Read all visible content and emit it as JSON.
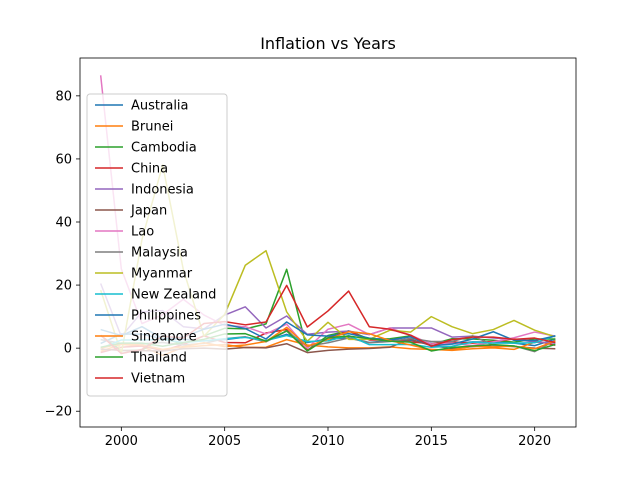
{
  "chart_data": {
    "type": "line",
    "title": "Inflation vs Years",
    "xlabel": "",
    "ylabel": "",
    "xlim": [
      1998,
      2022
    ],
    "ylim": [
      -25,
      92
    ],
    "xticks": [
      2000,
      2005,
      2010,
      2015,
      2020
    ],
    "yticks": [
      -20,
      0,
      20,
      40,
      60,
      80
    ],
    "grid": false,
    "legend_position": "upper-left",
    "x": [
      1999,
      2000,
      2001,
      2002,
      2003,
      2004,
      2005,
      2006,
      2007,
      2008,
      2009,
      2010,
      2011,
      2012,
      2013,
      2014,
      2015,
      2016,
      2017,
      2018,
      2019,
      2020,
      2021
    ],
    "series": [
      {
        "name": "Australia",
        "color": "#1f77b4",
        "values": [
          1.5,
          4.5,
          4.4,
          3.0,
          2.8,
          2.3,
          2.7,
          3.5,
          2.3,
          4.4,
          1.8,
          2.9,
          3.3,
          1.8,
          2.4,
          2.5,
          1.5,
          1.3,
          2.0,
          1.9,
          1.6,
          0.8,
          2.9
        ]
      },
      {
        "name": "Brunei",
        "color": "#ff7f0e",
        "values": [
          -1.0,
          1.2,
          0.6,
          -2.3,
          0.3,
          0.8,
          1.1,
          0.2,
          0.3,
          2.7,
          1.0,
          0.4,
          0.1,
          0.1,
          0.4,
          -0.2,
          -0.4,
          -0.7,
          -0.2,
          0.1,
          -0.4,
          1.9,
          1.7
        ]
      },
      {
        "name": "Cambodia",
        "color": "#2ca02c",
        "values": [
          4.0,
          -0.8,
          -0.6,
          3.2,
          1.2,
          3.9,
          6.3,
          6.1,
          7.7,
          25.0,
          -0.7,
          4.0,
          5.5,
          2.9,
          3.0,
          3.9,
          1.2,
          3.0,
          2.9,
          2.5,
          1.9,
          2.9,
          2.9
        ]
      },
      {
        "name": "China",
        "color": "#d62728",
        "values": [
          -1.4,
          0.3,
          0.7,
          -0.8,
          1.2,
          3.9,
          1.8,
          1.7,
          4.8,
          5.9,
          -0.7,
          3.3,
          5.4,
          2.6,
          2.6,
          2.0,
          1.4,
          2.0,
          1.6,
          2.1,
          2.9,
          2.4,
          0.9
        ]
      },
      {
        "name": "Indonesia",
        "color": "#9467bd",
        "values": [
          20.5,
          3.7,
          11.5,
          11.9,
          6.8,
          6.1,
          10.5,
          13.1,
          6.4,
          10.2,
          4.4,
          5.1,
          5.4,
          4.3,
          6.4,
          6.4,
          6.4,
          3.5,
          3.8,
          3.2,
          2.8,
          2.0,
          1.6
        ]
      },
      {
        "name": "Japan",
        "color": "#8c564b",
        "values": [
          -0.3,
          -0.7,
          -0.8,
          -0.9,
          -0.2,
          0.0,
          -0.3,
          0.2,
          0.1,
          1.4,
          -1.4,
          -0.7,
          -0.3,
          -0.1,
          0.3,
          2.8,
          0.8,
          -0.1,
          0.5,
          1.0,
          0.5,
          0.0,
          -0.2
        ]
      },
      {
        "name": "Lao",
        "color": "#e377c2",
        "values": [
          86.5,
          25.1,
          7.8,
          10.6,
          15.5,
          10.5,
          7.2,
          6.8,
          4.5,
          7.6,
          0.0,
          6.0,
          7.6,
          4.3,
          6.4,
          4.1,
          1.3,
          1.6,
          0.8,
          2.0,
          3.3,
          5.1,
          3.8
        ]
      },
      {
        "name": "Malaysia",
        "color": "#7f7f7f",
        "values": [
          2.7,
          1.5,
          1.4,
          1.8,
          1.0,
          1.5,
          3.0,
          3.6,
          2.0,
          5.4,
          0.6,
          1.7,
          3.2,
          1.7,
          2.1,
          3.1,
          2.1,
          2.1,
          3.9,
          0.9,
          0.7,
          -1.1,
          2.5
        ]
      },
      {
        "name": "Myanmar",
        "color": "#bcbd22",
        "values": [
          18.4,
          -1.7,
          34.5,
          58.1,
          24.9,
          3.8,
          10.7,
          26.3,
          30.9,
          11.5,
          2.2,
          8.2,
          2.8,
          2.8,
          5.7,
          5.1,
          10.0,
          6.8,
          4.6,
          5.9,
          8.8,
          5.7,
          3.6
        ]
      },
      {
        "name": "New Zealand",
        "color": "#17becf",
        "values": [
          -0.1,
          2.6,
          2.6,
          2.7,
          1.8,
          2.3,
          3.0,
          3.4,
          2.4,
          4.0,
          2.1,
          2.3,
          4.0,
          1.1,
          1.1,
          1.2,
          0.3,
          0.6,
          1.9,
          1.6,
          1.6,
          1.7,
          3.9
        ]
      },
      {
        "name": "Philippines",
        "color": "#1f77b4",
        "values": [
          5.9,
          4.0,
          6.8,
          3.0,
          3.5,
          6.0,
          7.6,
          6.2,
          2.9,
          8.3,
          4.2,
          3.8,
          4.6,
          3.2,
          2.6,
          3.6,
          0.7,
          1.3,
          2.9,
          5.2,
          2.5,
          2.4,
          3.9
        ]
      },
      {
        "name": "Singapore",
        "color": "#ff7f0e",
        "values": [
          0.0,
          1.4,
          1.0,
          -0.4,
          0.5,
          1.7,
          0.5,
          1.0,
          2.1,
          6.6,
          0.6,
          2.8,
          5.2,
          4.6,
          2.4,
          1.0,
          -0.5,
          -0.5,
          0.6,
          0.4,
          0.6,
          -0.2,
          2.3
        ]
      },
      {
        "name": "Thailand",
        "color": "#2ca02c",
        "values": [
          0.3,
          1.6,
          1.6,
          0.6,
          1.8,
          2.8,
          4.5,
          4.6,
          2.2,
          5.5,
          -0.9,
          3.3,
          3.8,
          3.0,
          2.2,
          1.9,
          -0.9,
          0.2,
          0.7,
          1.1,
          0.7,
          -0.8,
          1.2
        ]
      },
      {
        "name": "Vietnam",
        "color": "#d62728",
        "values": [
          4.1,
          -1.7,
          -0.4,
          3.8,
          3.2,
          7.8,
          8.4,
          7.4,
          8.3,
          19.9,
          6.7,
          11.8,
          18.1,
          6.8,
          6.0,
          4.1,
          0.6,
          2.7,
          3.5,
          3.5,
          2.8,
          3.2,
          1.8
        ]
      }
    ]
  }
}
